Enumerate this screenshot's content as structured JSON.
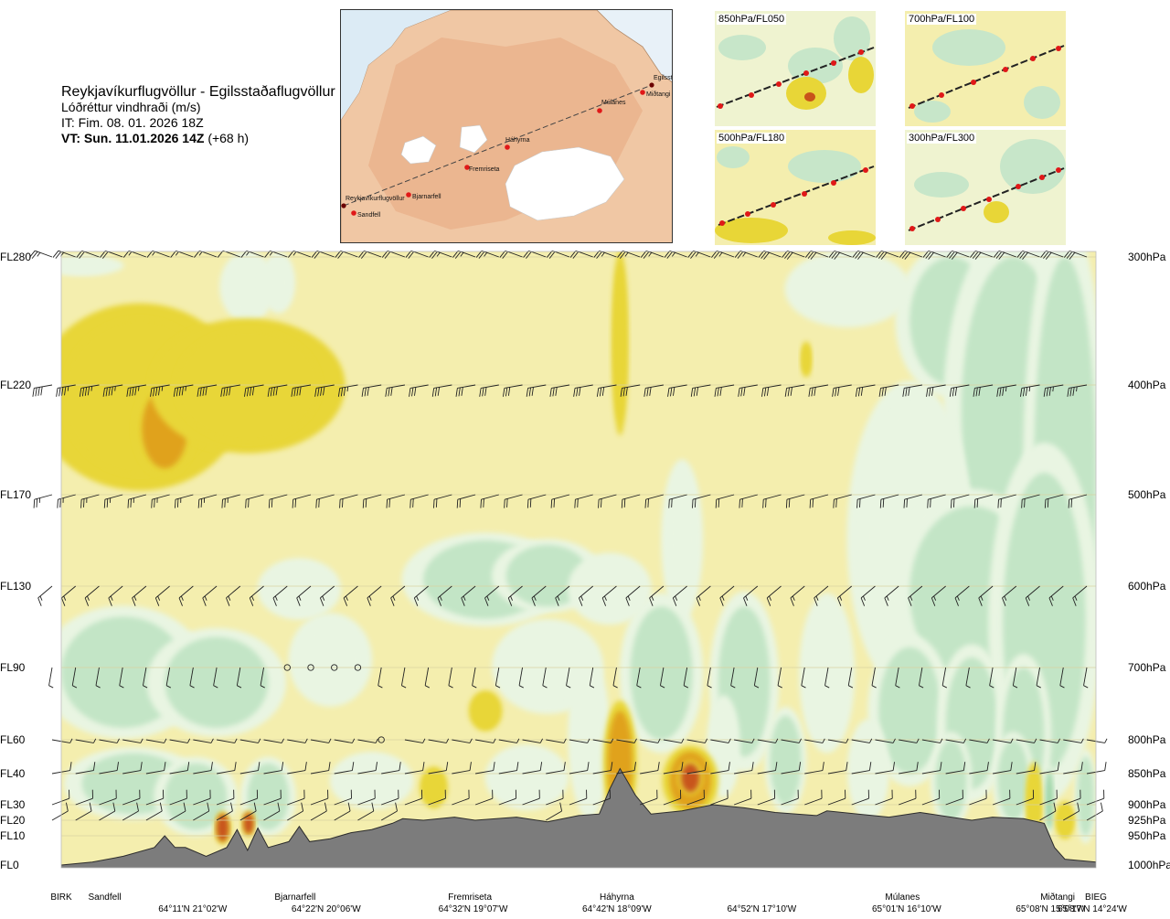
{
  "header": {
    "route": "Reykjavíkurflugvöllur - Egilsstaðaflugvöllur",
    "field": "Lóðréttur vindhraði (m/s)",
    "init_time": "IT: Fim. 08. 01. 2026 18Z",
    "valid_label": "VT: Sun. 11.01.2026 14Z",
    "valid_offset": "(+68 h)"
  },
  "overview_map": {
    "points": [
      "Reykjavíkurflugvöllur",
      "Sandfell",
      "Bjarnarfell",
      "Fremriseta",
      "Háhyrna",
      "Múlanes",
      "Miðtangi",
      "Egilssta"
    ]
  },
  "inset_maps": [
    {
      "label": "850hPa/FL050"
    },
    {
      "label": "700hPa/FL100"
    },
    {
      "label": "500hPa/FL180"
    },
    {
      "label": "300hPa/FL300"
    }
  ],
  "chart_data": {
    "type": "heatmap",
    "title": "Reykjavíkurflugvöllur - Egilsstaðaflugvöllur",
    "variable": "Lóðréttur vindhraði (m/s)",
    "flight_levels": [
      {
        "label": "FL280",
        "hpa": 300,
        "y": 280
      },
      {
        "label": "FL220",
        "hpa": 400,
        "y": 220
      },
      {
        "label": "FL170",
        "hpa": 500,
        "y": 170
      },
      {
        "label": "FL130",
        "hpa": 600,
        "y": 130
      },
      {
        "label": "FL90",
        "hpa": 700,
        "y": 90
      },
      {
        "label": "FL60",
        "hpa": 800,
        "y": 60
      },
      {
        "label": "FL40",
        "hpa": 850,
        "y": 40
      },
      {
        "label": "FL30",
        "hpa": 900,
        "y": 30
      },
      {
        "label": "FL20",
        "hpa": 925,
        "y": 20
      },
      {
        "label": "FL10",
        "hpa": 950,
        "y": 10
      },
      {
        "label": "FL0",
        "hpa": 1000,
        "y": 0
      }
    ],
    "pressure_labels": [
      "300hPa",
      "400hPa",
      "500hPa",
      "600hPa",
      "700hPa",
      "800hPa",
      "850hPa",
      "900hPa",
      "925hPa",
      "950hPa",
      "1000hPa"
    ],
    "x_range": [
      0,
      1
    ],
    "y_range": [
      0,
      280
    ],
    "waypoints": [
      {
        "name": "BIRK",
        "x": 0.0
      },
      {
        "name": "Sandfell",
        "x": 0.042
      },
      {
        "name": "Bjarnarfell",
        "x": 0.226
      },
      {
        "name": "Fremriseta",
        "x": 0.395
      },
      {
        "name": "Háhyrna",
        "x": 0.537
      },
      {
        "name": "Múlanes",
        "x": 0.813
      },
      {
        "name": "Miðtangi",
        "x": 0.963
      },
      {
        "name": "BIEG",
        "x": 1.0
      }
    ],
    "coordinates": [
      {
        "label": "64°11'N 21°02'W",
        "x": 0.127
      },
      {
        "label": "64°22'N 20°06'W",
        "x": 0.256
      },
      {
        "label": "64°32'N 19°07'W",
        "x": 0.398
      },
      {
        "label": "64°42'N 18°09'W",
        "x": 0.537
      },
      {
        "label": "64°52'N 17°10'W",
        "x": 0.677
      },
      {
        "label": "65°01'N 16°10'W",
        "x": 0.817
      },
      {
        "label": "65°08'N 15°08'W",
        "x": 0.956
      },
      {
        "label": "65°17'N 14°24'W",
        "x": 1.0
      }
    ],
    "terrain_profile": [
      [
        0.0,
        0
      ],
      [
        0.03,
        1
      ],
      [
        0.06,
        3
      ],
      [
        0.09,
        6
      ],
      [
        0.1,
        10
      ],
      [
        0.11,
        6
      ],
      [
        0.12,
        6
      ],
      [
        0.14,
        3
      ],
      [
        0.16,
        6
      ],
      [
        0.17,
        14
      ],
      [
        0.18,
        5
      ],
      [
        0.19,
        15
      ],
      [
        0.2,
        6
      ],
      [
        0.22,
        8
      ],
      [
        0.23,
        16
      ],
      [
        0.24,
        8
      ],
      [
        0.26,
        9
      ],
      [
        0.28,
        12
      ],
      [
        0.3,
        14
      ],
      [
        0.32,
        18
      ],
      [
        0.33,
        21
      ],
      [
        0.35,
        20
      ],
      [
        0.38,
        22
      ],
      [
        0.4,
        20
      ],
      [
        0.44,
        22
      ],
      [
        0.47,
        19
      ],
      [
        0.5,
        23
      ],
      [
        0.52,
        24
      ],
      [
        0.53,
        35
      ],
      [
        0.54,
        43
      ],
      [
        0.555,
        33
      ],
      [
        0.57,
        24
      ],
      [
        0.6,
        26
      ],
      [
        0.63,
        30
      ],
      [
        0.66,
        28
      ],
      [
        0.69,
        25
      ],
      [
        0.73,
        23
      ],
      [
        0.74,
        26
      ],
      [
        0.77,
        24
      ],
      [
        0.8,
        22
      ],
      [
        0.83,
        25
      ],
      [
        0.86,
        22
      ],
      [
        0.88,
        20
      ],
      [
        0.9,
        22
      ],
      [
        0.93,
        21
      ],
      [
        0.95,
        18
      ],
      [
        0.96,
        6
      ],
      [
        0.97,
        2
      ],
      [
        1.0,
        1
      ]
    ],
    "color_scale": [
      {
        "min": -1.0,
        "max": -0.5,
        "color": "#9fd6a8"
      },
      {
        "min": -0.5,
        "max": -0.2,
        "color": "#c3e5c6"
      },
      {
        "min": -0.2,
        "max": -0.05,
        "color": "#e9f5e2"
      },
      {
        "min": -0.05,
        "max": 0.05,
        "color": "#f4eeae"
      },
      {
        "min": 0.05,
        "max": 0.5,
        "color": "#e8d637"
      },
      {
        "min": 0.5,
        "max": 1.0,
        "color": "#e0a21d"
      },
      {
        "min": 1.0,
        "max": 2.0,
        "color": "#c8541a"
      }
    ],
    "updraft_regions": [
      {
        "x": 0.076,
        "y": 215,
        "rx": 0.075,
        "ry": 36,
        "value": 0.3
      },
      {
        "x": 0.1,
        "y": 200,
        "rx": 0.022,
        "ry": 18,
        "value": 0.7
      },
      {
        "x": 0.18,
        "y": 220,
        "rx": 0.07,
        "ry": 26,
        "value": 0.2
      },
      {
        "x": 0.54,
        "y": 240,
        "rx": 0.006,
        "ry": 36,
        "value": 0.2
      },
      {
        "x": 0.54,
        "y": 48,
        "rx": 0.012,
        "ry": 24,
        "value": 0.8
      },
      {
        "x": 0.608,
        "y": 40,
        "rx": 0.02,
        "ry": 13,
        "value": 0.8
      },
      {
        "x": 0.608,
        "y": 40,
        "rx": 0.009,
        "ry": 6,
        "value": 1.5
      },
      {
        "x": 0.156,
        "y": 16,
        "rx": 0.006,
        "ry": 8,
        "value": 1.0
      },
      {
        "x": 0.181,
        "y": 18,
        "rx": 0.005,
        "ry": 7,
        "value": 1.0
      },
      {
        "x": 0.36,
        "y": 36,
        "rx": 0.01,
        "ry": 6,
        "value": 0.3
      },
      {
        "x": 0.41,
        "y": 72,
        "rx": 0.012,
        "ry": 7,
        "value": 0.2
      },
      {
        "x": 0.72,
        "y": 232,
        "rx": 0.004,
        "ry": 7,
        "value": 0.3
      },
      {
        "x": 0.94,
        "y": 27,
        "rx": 0.006,
        "ry": 16,
        "value": 0.3
      },
      {
        "x": 0.97,
        "y": 20,
        "rx": 0.007,
        "ry": 10,
        "value": 0.3
      }
    ],
    "downdraft_regions": [
      {
        "x": 0.02,
        "y": 278,
        "rx": 0.03,
        "ry": 6,
        "value": -0.2
      },
      {
        "x": 0.18,
        "y": 268,
        "rx": 0.02,
        "ry": 16,
        "value": -0.2
      },
      {
        "x": 0.21,
        "y": 270,
        "rx": 0.012,
        "ry": 14,
        "value": -0.2
      },
      {
        "x": 0.76,
        "y": 270,
        "rx": 0.045,
        "ry": 20,
        "value": -0.2
      },
      {
        "x": 0.86,
        "y": 250,
        "rx": 0.04,
        "ry": 30,
        "value": -0.3
      },
      {
        "x": 0.92,
        "y": 210,
        "rx": 0.05,
        "ry": 70,
        "value": -0.3
      },
      {
        "x": 0.97,
        "y": 180,
        "rx": 0.03,
        "ry": 100,
        "value": -0.4
      },
      {
        "x": 0.82,
        "y": 150,
        "rx": 0.045,
        "ry": 60,
        "value": -0.2
      },
      {
        "x": 0.88,
        "y": 125,
        "rx": 0.06,
        "ry": 40,
        "value": -0.3
      },
      {
        "x": 0.95,
        "y": 110,
        "rx": 0.04,
        "ry": 70,
        "value": -0.5
      },
      {
        "x": 0.41,
        "y": 132,
        "rx": 0.06,
        "ry": 18,
        "value": -0.3
      },
      {
        "x": 0.47,
        "y": 134,
        "rx": 0.04,
        "ry": 14,
        "value": -0.3
      },
      {
        "x": 0.53,
        "y": 128,
        "rx": 0.03,
        "ry": 14,
        "value": -0.2
      },
      {
        "x": 0.6,
        "y": 150,
        "rx": 0.015,
        "ry": 30,
        "value": -0.2
      },
      {
        "x": 0.23,
        "y": 128,
        "rx": 0.03,
        "ry": 12,
        "value": -0.2
      },
      {
        "x": 0.06,
        "y": 90,
        "rx": 0.06,
        "ry": 25,
        "value": -0.3
      },
      {
        "x": 0.15,
        "y": 85,
        "rx": 0.05,
        "ry": 20,
        "value": -0.3
      },
      {
        "x": 0.26,
        "y": 95,
        "rx": 0.03,
        "ry": 18,
        "value": -0.2
      },
      {
        "x": 0.47,
        "y": 92,
        "rx": 0.04,
        "ry": 18,
        "value": -0.2
      },
      {
        "x": 0.58,
        "y": 90,
        "rx": 0.03,
        "ry": 30,
        "value": -0.3
      },
      {
        "x": 0.66,
        "y": 85,
        "rx": 0.025,
        "ry": 35,
        "value": -0.3
      },
      {
        "x": 0.74,
        "y": 90,
        "rx": 0.02,
        "ry": 30,
        "value": -0.2
      },
      {
        "x": 0.82,
        "y": 70,
        "rx": 0.03,
        "ry": 30,
        "value": -0.3
      },
      {
        "x": 0.88,
        "y": 65,
        "rx": 0.025,
        "ry": 30,
        "value": -0.3
      },
      {
        "x": 0.93,
        "y": 60,
        "rx": 0.02,
        "ry": 30,
        "value": -0.3
      },
      {
        "x": 0.07,
        "y": 38,
        "rx": 0.05,
        "ry": 14,
        "value": -0.3
      },
      {
        "x": 0.13,
        "y": 30,
        "rx": 0.03,
        "ry": 16,
        "value": -0.4
      },
      {
        "x": 0.2,
        "y": 30,
        "rx": 0.02,
        "ry": 16,
        "value": -0.4
      },
      {
        "x": 0.3,
        "y": 40,
        "rx": 0.03,
        "ry": 10,
        "value": -0.2
      },
      {
        "x": 0.45,
        "y": 42,
        "rx": 0.03,
        "ry": 12,
        "value": -0.2
      },
      {
        "x": 0.51,
        "y": 60,
        "rx": 0.015,
        "ry": 30,
        "value": -0.2
      },
      {
        "x": 0.64,
        "y": 55,
        "rx": 0.012,
        "ry": 20,
        "value": -0.2
      },
      {
        "x": 0.7,
        "y": 50,
        "rx": 0.015,
        "ry": 20,
        "value": -0.3
      },
      {
        "x": 0.78,
        "y": 45,
        "rx": 0.015,
        "ry": 20,
        "value": -0.2
      },
      {
        "x": 0.86,
        "y": 40,
        "rx": 0.015,
        "ry": 20,
        "value": -0.3
      },
      {
        "x": 0.92,
        "y": 40,
        "rx": 0.015,
        "ry": 20,
        "value": -0.3
      },
      {
        "x": 0.955,
        "y": 28,
        "rx": 0.004,
        "ry": 14,
        "value": -0.8
      },
      {
        "x": 0.99,
        "y": 30,
        "rx": 0.008,
        "ry": 20,
        "value": -0.3
      }
    ],
    "wind_barbs": {
      "columns": 45,
      "levels": [
        {
          "y": 280,
          "speed_kt": [
            25,
            25,
            20,
            20,
            15,
            15,
            15,
            15,
            10,
            15,
            15,
            15,
            20,
            20,
            20,
            20,
            20,
            25,
            25,
            25,
            20,
            20,
            20,
            20,
            25,
            25,
            25,
            25,
            25,
            25,
            25,
            30,
            30,
            30,
            30,
            30,
            30,
            30,
            30,
            30,
            30,
            30,
            30,
            30,
            30
          ],
          "dir_deg": 290
        },
        {
          "y": 220,
          "speed_kt": [
            40,
            45,
            45,
            45,
            45,
            45,
            45,
            40,
            40,
            40,
            40,
            40,
            40,
            35,
            30,
            30,
            30,
            30,
            30,
            30,
            30,
            30,
            30,
            30,
            30,
            30,
            30,
            30,
            30,
            30,
            30,
            30,
            30,
            30,
            30,
            30,
            30,
            30,
            30,
            30,
            30,
            35,
            35,
            35,
            35
          ],
          "dir_deg": 260
        },
        {
          "y": 170,
          "speed_kt": [
            25,
            25,
            25,
            25,
            25,
            25,
            25,
            25,
            25,
            20,
            20,
            20,
            20,
            20,
            20,
            20,
            20,
            20,
            20,
            20,
            20,
            20,
            20,
            20,
            20,
            20,
            20,
            20,
            20,
            20,
            20,
            20,
            20,
            20,
            20,
            20,
            20,
            20,
            20,
            20,
            20,
            20,
            20,
            20,
            20
          ],
          "dir_deg": 255
        },
        {
          "y": 130,
          "speed_kt": [
            15,
            15,
            15,
            15,
            15,
            15,
            15,
            15,
            15,
            15,
            15,
            15,
            15,
            15,
            15,
            15,
            15,
            15,
            15,
            15,
            15,
            15,
            15,
            15,
            15,
            15,
            15,
            15,
            15,
            15,
            15,
            15,
            15,
            15,
            15,
            15,
            15,
            15,
            15,
            15,
            15,
            15,
            15,
            15,
            15
          ],
          "dir_deg": 230
        },
        {
          "y": 90,
          "speed_kt": [
            5,
            5,
            5,
            5,
            5,
            5,
            5,
            5,
            5,
            5,
            0,
            0,
            0,
            0,
            5,
            5,
            5,
            5,
            5,
            5,
            5,
            5,
            5,
            5,
            5,
            5,
            5,
            5,
            5,
            5,
            5,
            5,
            5,
            5,
            5,
            5,
            5,
            5,
            5,
            5,
            5,
            5,
            5,
            5,
            5
          ],
          "dir_deg": 190
        },
        {
          "y": 60,
          "speed_kt": [
            5,
            5,
            5,
            5,
            5,
            5,
            5,
            5,
            5,
            5,
            5,
            5,
            5,
            5,
            0,
            5,
            5,
            5,
            5,
            5,
            5,
            5,
            5,
            5,
            5,
            5,
            5,
            5,
            5,
            5,
            5,
            5,
            5,
            5,
            5,
            5,
            5,
            5,
            5,
            5,
            5,
            5,
            5,
            5,
            5
          ],
          "dir_deg": 100
        },
        {
          "y": 40,
          "speed_kt": [
            10,
            10,
            10,
            10,
            10,
            10,
            10,
            10,
            10,
            10,
            10,
            10,
            10,
            10,
            10,
            10,
            10,
            10,
            10,
            10,
            10,
            10,
            10,
            10,
            10,
            10,
            10,
            10,
            10,
            10,
            10,
            10,
            10,
            10,
            10,
            10,
            10,
            10,
            10,
            10,
            10,
            10,
            10,
            10,
            10
          ],
          "dir_deg": 80
        },
        {
          "y": 30,
          "speed_kt": [
            10,
            10,
            10,
            10,
            10,
            10,
            10,
            10,
            10,
            10,
            10,
            10,
            10,
            10,
            10,
            10,
            10,
            10,
            10,
            10,
            10,
            10,
            10,
            10,
            10,
            10,
            10,
            10,
            10,
            10,
            10,
            10,
            10,
            10,
            10,
            10,
            10,
            10,
            10,
            10,
            10,
            10,
            10,
            10,
            10
          ],
          "dir_deg": 70
        },
        {
          "y": 20,
          "speed_kt": [
            10,
            10,
            10,
            10,
            10,
            10,
            10,
            10,
            10,
            10,
            10,
            10,
            10,
            10,
            10,
            10,
            10,
            10,
            10,
            10,
            10,
            10,
            10,
            10,
            10,
            10,
            10,
            10,
            10,
            10,
            10,
            10,
            10,
            10,
            10,
            10,
            10,
            10,
            10,
            10,
            10,
            10,
            10,
            10,
            10
          ],
          "dir_deg": 60
        }
      ]
    },
    "grid": true
  }
}
